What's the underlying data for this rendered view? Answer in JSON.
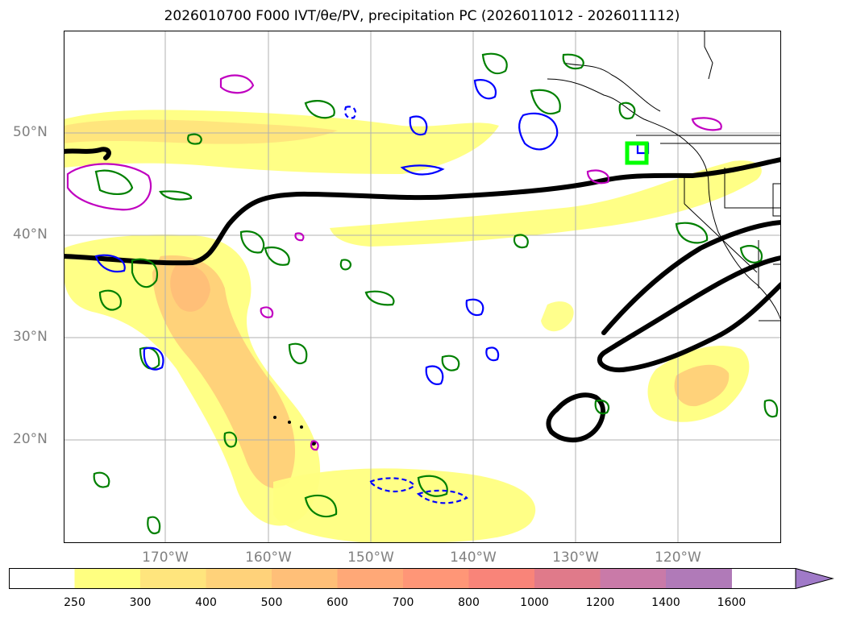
{
  "title_text": "2026010700 F000 IVT/θe/PV, precipitation PC (2026011012 - 2026011112)",
  "lat_labels": [
    "50°N",
    "40°N",
    "30°N",
    "20°N"
  ],
  "lon_labels": [
    "170°W",
    "160°W",
    "150°W",
    "140°W",
    "130°W",
    "120°W"
  ],
  "colorbar": {
    "ticks": [
      "250",
      "300",
      "400",
      "500",
      "600",
      "700",
      "800",
      "1000",
      "1200",
      "1400",
      "1600"
    ],
    "colors": [
      "#ffffff",
      "#ffff80",
      "#ffe57d",
      "#ffd27a",
      "#ffbf78",
      "#ffa877",
      "#ff9677",
      "#f98479",
      "#e07a8a",
      "#c97aa8",
      "#b07ab8",
      "#a07ac8"
    ]
  },
  "colors": {
    "ivt_fill": "#ffe57d",
    "theta_contour": "#000000",
    "green_contour": "#008000",
    "blue_contour": "#0000ff",
    "magenta_contour": "#c000c0",
    "highlight_box": "#00ff00",
    "grid": "#b0b0b0",
    "coast": "#000000"
  }
}
